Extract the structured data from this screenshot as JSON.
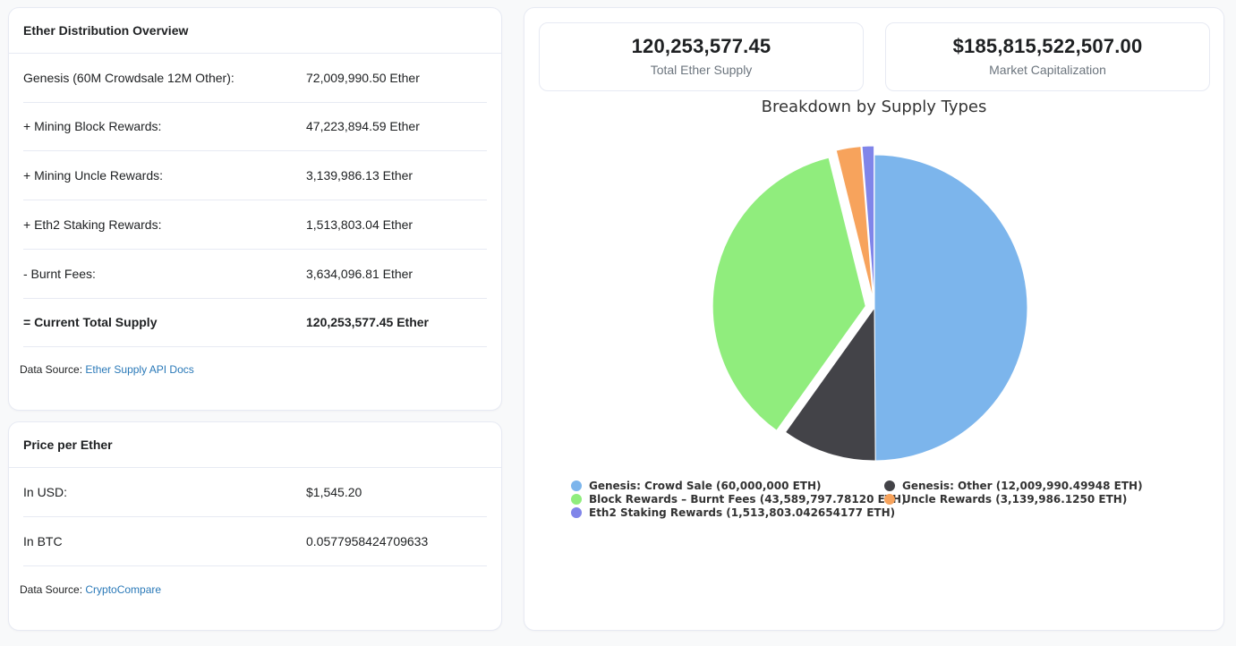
{
  "distribution": {
    "title": "Ether Distribution Overview",
    "rows": [
      {
        "label": "Genesis (60M Crowdsale 12M Other):",
        "value": "72,009,990.50 Ether"
      },
      {
        "label": "+ Mining Block Rewards:",
        "value": "47,223,894.59 Ether"
      },
      {
        "label": "+ Mining Uncle Rewards:",
        "value": "3,139,986.13 Ether"
      },
      {
        "label": "+ Eth2 Staking Rewards:",
        "value": "1,513,803.04 Ether"
      },
      {
        "label": "- Burnt Fees:",
        "value": "3,634,096.81 Ether"
      },
      {
        "label": "= Current Total Supply",
        "value": "120,253,577.45 Ether"
      }
    ],
    "source_prefix": "Data Source: ",
    "source_link": "Ether Supply API Docs"
  },
  "price": {
    "title": "Price per Ether",
    "rows": [
      {
        "label": "In USD:",
        "value": "$1,545.20"
      },
      {
        "label": "In BTC",
        "value": "0.0577958424709633"
      }
    ],
    "source_prefix": "Data Source: ",
    "source_link": "CryptoCompare"
  },
  "stats": {
    "supply_value": "120,253,577.45",
    "supply_label": "Total Ether Supply",
    "marketcap_value": "$185,815,522,507.00",
    "marketcap_label": "Market Capitalization"
  },
  "chart_data": {
    "type": "pie",
    "title": "Breakdown by Supply Types",
    "categories": [
      "Genesis: Crowd Sale (60,000,000 ETH)",
      "Genesis: Other (12,009,990.49948 ETH)",
      "Block Rewards – Burnt Fees (43,589,797.78120 ETH)",
      "Uncle Rewards (3,139,986.1250 ETH)",
      "Eth2 Staking Rewards (1,513,803.042654177 ETH)"
    ],
    "values": [
      60000000,
      12009990.49948,
      43589797.7812,
      3139986.125,
      1513803.042654177
    ],
    "colors": [
      "#7cb5ec",
      "#434348",
      "#90ed7d",
      "#f7a35c",
      "#8085e9"
    ],
    "sliced": [
      false,
      false,
      true,
      true,
      true
    ],
    "legend_position": "bottom"
  }
}
